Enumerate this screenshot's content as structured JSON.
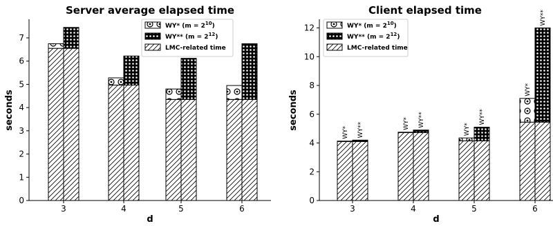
{
  "chart_data": [
    {
      "type": "bar",
      "title": "Server average elapsed time",
      "xlabel": "d",
      "ylabel": "seconds",
      "categories": [
        "3",
        "4",
        "5",
        "6"
      ],
      "ylim": [
        0,
        7.8
      ],
      "yticks": [
        0,
        1,
        2,
        3,
        4,
        5,
        6,
        7
      ],
      "stacked": true,
      "grouped": true,
      "bars": [
        {
          "category": "3",
          "group": "WY*",
          "lmc": 6.55,
          "extra": 0.2
        },
        {
          "category": "3",
          "group": "WY**",
          "lmc": 6.55,
          "extra": 0.9
        },
        {
          "category": "4",
          "group": "WY*",
          "lmc": 4.97,
          "extra": 0.31
        },
        {
          "category": "4",
          "group": "WY**",
          "lmc": 4.97,
          "extra": 1.25
        },
        {
          "category": "5",
          "group": "WY*",
          "lmc": 4.35,
          "extra": 0.45
        },
        {
          "category": "5",
          "group": "WY**",
          "lmc": 4.35,
          "extra": 1.77
        },
        {
          "category": "6",
          "group": "WY*",
          "lmc": 4.35,
          "extra": 0.6
        },
        {
          "category": "6",
          "group": "WY**",
          "lmc": 4.35,
          "extra": 2.4
        }
      ],
      "legend": {
        "position": "top-right",
        "entries": [
          {
            "key": "wy1",
            "base": "WY* (m = 2",
            "exp": "10",
            "tail": ")",
            "pattern": "circles"
          },
          {
            "key": "wy2",
            "base": "WY** (m = 2",
            "exp": "12",
            "tail": ")",
            "pattern": "dots"
          },
          {
            "key": "lmc",
            "base": "LMC-related time",
            "exp": "",
            "tail": "",
            "pattern": "hatch"
          }
        ]
      },
      "show_bar_labels": false
    },
    {
      "type": "bar",
      "title": "Client elapsed time",
      "xlabel": "d",
      "ylabel": "seconds",
      "categories": [
        "3",
        "4",
        "5",
        "6"
      ],
      "ylim": [
        0,
        12.6
      ],
      "yticks": [
        0,
        2,
        4,
        6,
        8,
        10,
        12
      ],
      "stacked": true,
      "grouped": true,
      "bars": [
        {
          "category": "3",
          "group": "WY*",
          "lmc": 4.1,
          "extra": 0.03,
          "label": "WY*"
        },
        {
          "category": "3",
          "group": "WY**",
          "lmc": 4.1,
          "extra": 0.1,
          "label": "WY**"
        },
        {
          "category": "4",
          "group": "WY*",
          "lmc": 4.72,
          "extra": 0.03,
          "label": "WY*"
        },
        {
          "category": "4",
          "group": "WY**",
          "lmc": 4.72,
          "extra": 0.18,
          "label": "WY**"
        },
        {
          "category": "5",
          "group": "WY*",
          "lmc": 4.15,
          "extra": 0.2,
          "label": "WY*"
        },
        {
          "category": "5",
          "group": "WY**",
          "lmc": 4.15,
          "extra": 0.95,
          "label": "WY**"
        },
        {
          "category": "6",
          "group": "WY*",
          "lmc": 5.45,
          "extra": 1.65,
          "label": "WY*"
        },
        {
          "category": "6",
          "group": "WY**",
          "lmc": 5.45,
          "extra": 6.55,
          "label": "WY**"
        }
      ],
      "legend": {
        "position": "top-left",
        "entries": [
          {
            "key": "wy1",
            "base": "WY* (m = 2",
            "exp": "10",
            "tail": ")",
            "pattern": "circles"
          },
          {
            "key": "wy2",
            "base": "WY** (m = 2",
            "exp": "12",
            "tail": ")",
            "pattern": "dots"
          },
          {
            "key": "lmc",
            "base": "LMC-related time",
            "exp": "",
            "tail": "",
            "pattern": "hatch"
          }
        ]
      },
      "show_bar_labels": true
    }
  ]
}
